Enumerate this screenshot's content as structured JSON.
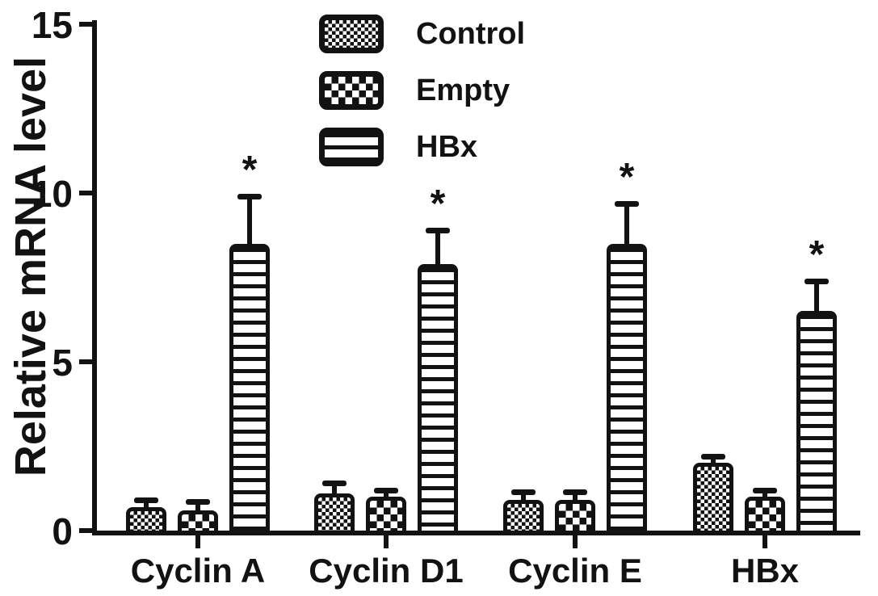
{
  "figure": {
    "background": "#ffffff",
    "ink_color": "#121212"
  },
  "chart_data": {
    "type": "bar",
    "title": "",
    "xlabel": "",
    "ylabel": "Relative mRNA level",
    "ylim": [
      0,
      15
    ],
    "yticks": [
      0,
      5,
      10,
      15
    ],
    "grid": "off",
    "legend_position": "top-center",
    "categories": [
      "Cyclin A",
      "Cyclin D1",
      "Cyclin E",
      "HBx"
    ],
    "series": [
      {
        "name": "Control",
        "pattern": "fine-checker",
        "values": [
          0.7,
          1.1,
          0.9,
          2.0
        ],
        "errors": [
          0.2,
          0.3,
          0.25,
          0.2
        ],
        "significance": [
          "",
          "",
          "",
          ""
        ]
      },
      {
        "name": "Empty",
        "pattern": "coarse-checker",
        "values": [
          0.6,
          1.0,
          0.9,
          1.0
        ],
        "errors": [
          0.25,
          0.2,
          0.25,
          0.2
        ],
        "significance": [
          "",
          "",
          "",
          ""
        ]
      },
      {
        "name": "HBx",
        "pattern": "h-stripes",
        "values": [
          8.5,
          7.9,
          8.5,
          6.5
        ],
        "errors": [
          1.4,
          1.0,
          1.2,
          0.9
        ],
        "significance": [
          "*",
          "*",
          "*",
          "*"
        ]
      }
    ]
  }
}
